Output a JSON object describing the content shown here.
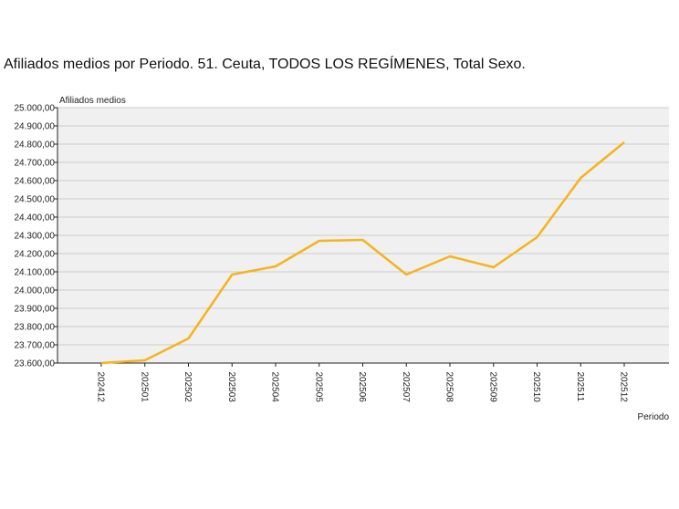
{
  "chart_data": {
    "type": "line",
    "title": "Afiliados medios por Periodo. 51. Ceuta, TODOS LOS REGÍMENES, Total Sexo.",
    "ylabel": "Afiliados medios",
    "xlabel": "Periodo",
    "categories": [
      "202412",
      "202501",
      "202502",
      "202503",
      "202504",
      "202505",
      "202506",
      "202507",
      "202508",
      "202509",
      "202510",
      "202511",
      "202512"
    ],
    "series": [
      {
        "values": [
          23600,
          23615,
          23735,
          24085,
          24130,
          24270,
          24275,
          24085,
          24185,
          24125,
          24290,
          24615,
          24810
        ]
      }
    ],
    "ylim": [
      23600,
      25000
    ],
    "yticks": [
      "25.000,00",
      "24.900,00",
      "24.800,00",
      "24.700,00",
      "24.600,00",
      "24.500,00",
      "24.400,00",
      "24.300,00",
      "24.200,00",
      "24.100,00",
      "24.000,00",
      "23.900,00",
      "23.800,00",
      "23.700,00",
      "23.600,00"
    ],
    "ytick_values": [
      25000,
      24900,
      24800,
      24700,
      24600,
      24500,
      24400,
      24300,
      24200,
      24100,
      24000,
      23900,
      23800,
      23700,
      23600
    ],
    "grid": true,
    "colors": {
      "line": "#f5b41c",
      "plot_bg": "#f0f0f0",
      "grid": "#cccccc",
      "axis": "#222222"
    }
  }
}
